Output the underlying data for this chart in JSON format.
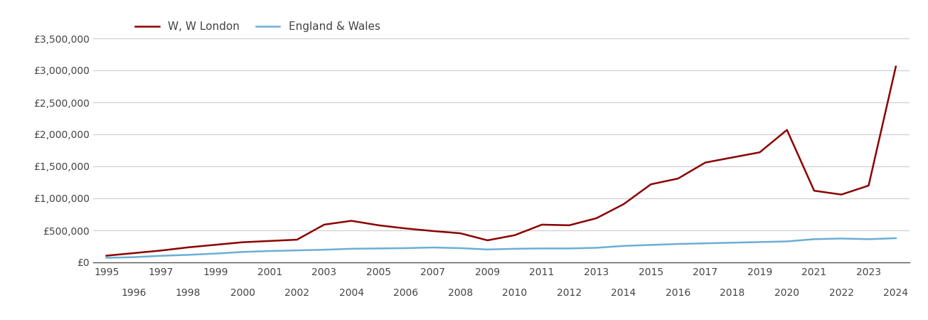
{
  "w_london_years": [
    1995,
    1996,
    1997,
    1998,
    1999,
    2000,
    2001,
    2002,
    2003,
    2004,
    2005,
    2006,
    2007,
    2008,
    2009,
    2010,
    2011,
    2012,
    2013,
    2014,
    2015,
    2016,
    2017,
    2018,
    2019,
    2020,
    2021,
    2022,
    2023,
    2024
  ],
  "w_london_values": [
    105000,
    145000,
    185000,
    235000,
    275000,
    315000,
    335000,
    355000,
    590000,
    650000,
    580000,
    530000,
    490000,
    455000,
    345000,
    425000,
    590000,
    580000,
    690000,
    910000,
    1220000,
    1310000,
    1560000,
    1640000,
    1720000,
    2070000,
    1120000,
    1060000,
    1200000,
    3060000
  ],
  "eng_wales_years": [
    1995,
    1996,
    1997,
    1998,
    1999,
    2000,
    2001,
    2002,
    2003,
    2004,
    2005,
    2006,
    2007,
    2008,
    2009,
    2010,
    2011,
    2012,
    2013,
    2014,
    2015,
    2016,
    2017,
    2018,
    2019,
    2020,
    2021,
    2022,
    2023,
    2024
  ],
  "eng_wales_values": [
    72000,
    82000,
    103000,
    118000,
    138000,
    163000,
    178000,
    188000,
    198000,
    213000,
    218000,
    223000,
    233000,
    223000,
    202000,
    213000,
    218000,
    218000,
    228000,
    258000,
    273000,
    288000,
    298000,
    308000,
    318000,
    328000,
    363000,
    373000,
    363000,
    378000
  ],
  "w_london_color": "#8B0000",
  "eng_wales_color": "#6BAED6",
  "legend_labels": [
    "W, W London",
    "England & Wales"
  ],
  "ylim": [
    0,
    3500000
  ],
  "yticks": [
    0,
    500000,
    1000000,
    1500000,
    2000000,
    2500000,
    3000000,
    3500000
  ],
  "ytick_labels": [
    "£0",
    "£500,000",
    "£1,000,000",
    "£1,500,000",
    "£2,000,000",
    "£2,500,000",
    "£3,000,000",
    "£3,500,000"
  ],
  "xlim": [
    1994.5,
    2024.5
  ],
  "grid_color": "#CCCCCC",
  "background_color": "#FFFFFF",
  "line_width": 1.8,
  "odd_years": [
    1995,
    1997,
    1999,
    2001,
    2003,
    2005,
    2007,
    2009,
    2011,
    2013,
    2015,
    2017,
    2019,
    2021,
    2023
  ],
  "even_years": [
    1996,
    1998,
    2000,
    2002,
    2004,
    2006,
    2008,
    2010,
    2012,
    2014,
    2016,
    2018,
    2020,
    2022,
    2024
  ]
}
